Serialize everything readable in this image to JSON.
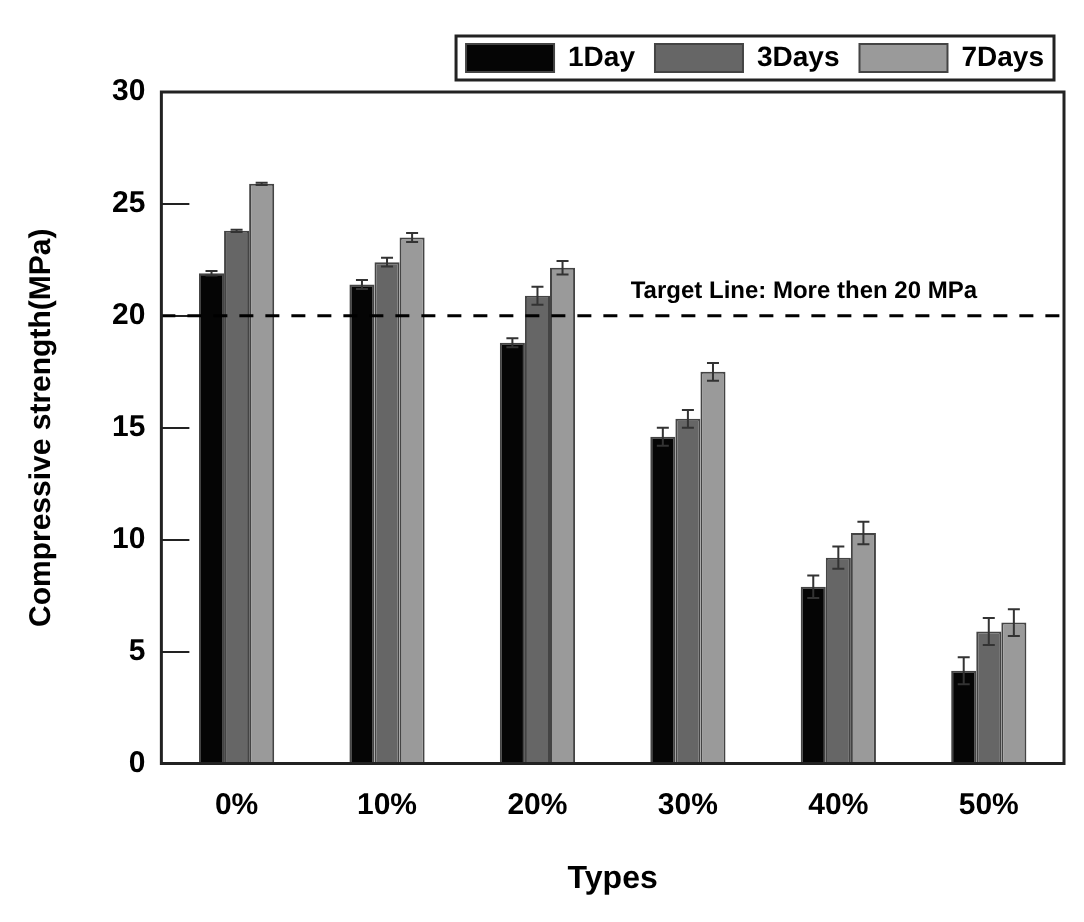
{
  "chart_data": {
    "type": "bar",
    "xlabel": "Types",
    "ylabel": "Compressive strength(MPa)",
    "categories": [
      "0%",
      "10%",
      "20%",
      "30%",
      "40%",
      "50%"
    ],
    "series": [
      {
        "name": "1Day",
        "color": "#050505",
        "values": [
          21.9,
          21.4,
          18.8,
          14.6,
          7.9,
          4.15
        ],
        "errors": [
          0.1,
          0.2,
          0.2,
          0.4,
          0.5,
          0.6
        ]
      },
      {
        "name": "3Days",
        "color": "#666666",
        "values": [
          23.8,
          22.4,
          20.9,
          15.4,
          9.2,
          5.9
        ],
        "errors": [
          0.05,
          0.2,
          0.4,
          0.4,
          0.5,
          0.6
        ]
      },
      {
        "name": "7Days",
        "color": "#9a9a9a",
        "values": [
          25.9,
          23.5,
          22.15,
          17.5,
          10.3,
          6.3
        ],
        "errors": [
          0.05,
          0.2,
          0.3,
          0.4,
          0.5,
          0.6
        ]
      }
    ],
    "ylim": [
      0,
      30
    ],
    "yticks": [
      0,
      5,
      10,
      15,
      20,
      25,
      30
    ],
    "grid": false,
    "legend": "top right",
    "ref_lines": [
      {
        "axis": "y",
        "value": 20,
        "label": "Target Line: More then 20 MPa",
        "line_style": "dashed",
        "color": "#000000"
      }
    ]
  }
}
